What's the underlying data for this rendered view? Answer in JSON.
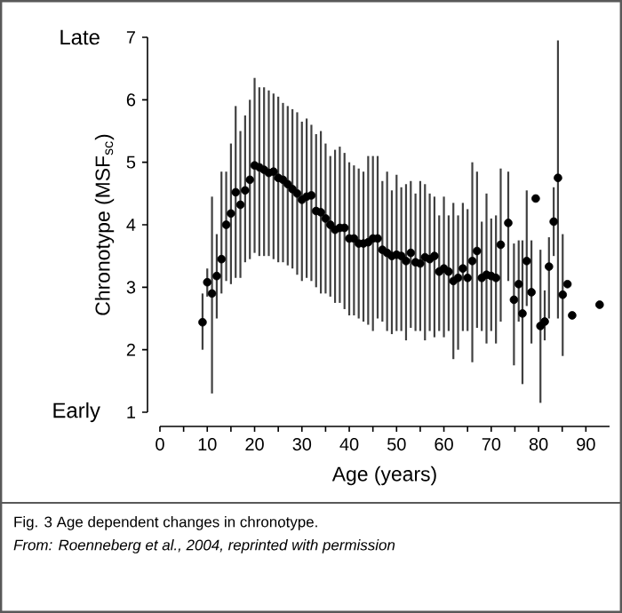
{
  "chart_data": {
    "type": "scatter",
    "xlabel": "Age (years)",
    "ylabel": "Chronotype (MSF$_{sc}$)",
    "x": [
      9,
      10,
      11,
      12,
      13,
      14,
      15,
      16,
      17,
      18,
      19,
      20,
      21,
      22,
      23,
      24,
      25,
      26,
      27,
      28,
      29,
      30,
      31,
      32,
      33,
      34,
      35,
      36,
      37,
      38,
      39,
      40,
      41,
      42,
      43,
      44,
      45,
      46,
      47,
      48,
      49,
      50,
      51,
      52,
      53,
      54,
      55,
      56,
      57,
      58,
      59,
      60,
      61,
      62,
      63,
      64,
      65,
      66,
      67,
      68,
      69,
      70,
      71,
      72,
      73.6,
      74.8,
      75.8,
      76.6,
      77.5,
      78.5,
      79.4,
      80.4,
      81.3,
      82.2,
      83.2,
      84.1,
      85.1,
      86.1,
      87.1,
      92.9
    ],
    "values": [
      2.44,
      3.08,
      2.9,
      3.18,
      3.45,
      4.0,
      4.18,
      4.52,
      4.32,
      4.55,
      4.72,
      4.95,
      4.92,
      4.88,
      4.83,
      4.85,
      4.75,
      4.72,
      4.65,
      4.57,
      4.5,
      4.4,
      4.45,
      4.47,
      4.22,
      4.2,
      4.1,
      4.0,
      3.92,
      3.95,
      3.95,
      3.78,
      3.78,
      3.7,
      3.7,
      3.72,
      3.78,
      3.78,
      3.6,
      3.55,
      3.5,
      3.52,
      3.5,
      3.42,
      3.55,
      3.4,
      3.38,
      3.48,
      3.45,
      3.5,
      3.25,
      3.3,
      3.25,
      3.1,
      3.15,
      3.3,
      3.15,
      3.42,
      3.58,
      3.15,
      3.2,
      3.18,
      3.15,
      3.68,
      4.03,
      2.8,
      3.05,
      2.58,
      3.42,
      2.92,
      4.42,
      2.38,
      2.45,
      3.33,
      4.05,
      4.75,
      2.88,
      3.05,
      2.55,
      2.72
    ],
    "errors": [
      [
        2.0,
        2.9
      ],
      [
        2.85,
        3.3
      ],
      [
        1.3,
        4.45
      ],
      [
        2.5,
        3.85
      ],
      [
        2.9,
        4.85
      ],
      [
        3.1,
        4.85
      ],
      [
        3.05,
        5.3
      ],
      [
        3.15,
        5.9
      ],
      [
        3.15,
        5.5
      ],
      [
        3.4,
        5.75
      ],
      [
        3.45,
        6.0
      ],
      [
        3.55,
        6.35
      ],
      [
        3.5,
        6.2
      ],
      [
        3.5,
        6.2
      ],
      [
        3.5,
        6.15
      ],
      [
        3.45,
        6.1
      ],
      [
        3.4,
        6.05
      ],
      [
        3.4,
        5.95
      ],
      [
        3.35,
        5.9
      ],
      [
        3.3,
        5.85
      ],
      [
        3.2,
        5.8
      ],
      [
        3.1,
        5.65
      ],
      [
        3.15,
        5.7
      ],
      [
        3.1,
        5.6
      ],
      [
        3.0,
        5.45
      ],
      [
        2.9,
        5.5
      ],
      [
        2.9,
        5.3
      ],
      [
        2.85,
        5.1
      ],
      [
        2.75,
        5.2
      ],
      [
        2.75,
        5.25
      ],
      [
        2.65,
        5.15
      ],
      [
        2.55,
        5.0
      ],
      [
        2.55,
        4.95
      ],
      [
        2.5,
        4.9
      ],
      [
        2.45,
        4.85
      ],
      [
        2.4,
        5.1
      ],
      [
        2.3,
        5.1
      ],
      [
        2.5,
        5.1
      ],
      [
        2.45,
        4.7
      ],
      [
        2.3,
        4.85
      ],
      [
        2.25,
        4.55
      ],
      [
        2.3,
        4.8
      ],
      [
        2.3,
        4.6
      ],
      [
        2.15,
        4.65
      ],
      [
        2.35,
        4.7
      ],
      [
        2.3,
        4.5
      ],
      [
        2.3,
        4.7
      ],
      [
        2.15,
        4.65
      ],
      [
        2.3,
        4.5
      ],
      [
        2.2,
        4.45
      ],
      [
        2.3,
        4.15
      ],
      [
        2.2,
        4.45
      ],
      [
        2.3,
        4.15
      ],
      [
        1.85,
        4.35
      ],
      [
        2.0,
        4.15
      ],
      [
        2.3,
        4.35
      ],
      [
        2.3,
        4.25
      ],
      [
        1.8,
        5.0
      ],
      [
        2.35,
        4.85
      ],
      [
        2.3,
        4.05
      ],
      [
        2.1,
        4.5
      ],
      [
        2.3,
        4.1
      ],
      [
        2.1,
        4.15
      ],
      [
        2.45,
        4.9
      ],
      [
        3.1,
        4.85
      ],
      [
        1.75,
        3.7
      ],
      [
        2.45,
        3.75
      ],
      [
        1.45,
        3.75
      ],
      [
        2.7,
        4.55
      ],
      [
        2.1,
        3.75
      ],
      null,
      [
        1.15,
        3.6
      ],
      [
        2.15,
        2.95
      ],
      [
        2.5,
        3.8
      ],
      [
        3.5,
        4.6
      ],
      [
        2.5,
        6.95
      ],
      [
        1.9,
        3.85
      ],
      null,
      null,
      null
    ],
    "color": "#000000",
    "xlim": [
      0,
      95
    ],
    "ylim": [
      1,
      7
    ],
    "xticks": [
      0,
      {
        "value": 5,
        "label": null
      },
      10,
      {
        "value": 15,
        "label": null
      },
      20,
      {
        "value": 25,
        "label": null
      },
      30,
      {
        "value": 35,
        "label": null
      },
      40,
      {
        "value": 45,
        "label": null
      },
      50,
      {
        "value": 55,
        "label": null
      },
      60,
      {
        "value": 65,
        "label": null
      },
      70,
      {
        "value": 75,
        "label": null
      },
      80,
      {
        "value": 85,
        "label": null
      },
      90
    ],
    "yticks": [
      1,
      2,
      3,
      4,
      5,
      6,
      7
    ],
    "grid": false,
    "annotations": [
      "Late",
      "Early",
      "Fig. 3 Age dependent changes in chronotype.",
      "From: Roenneberg et al., 2004, reprinted with permission"
    ]
  }
}
